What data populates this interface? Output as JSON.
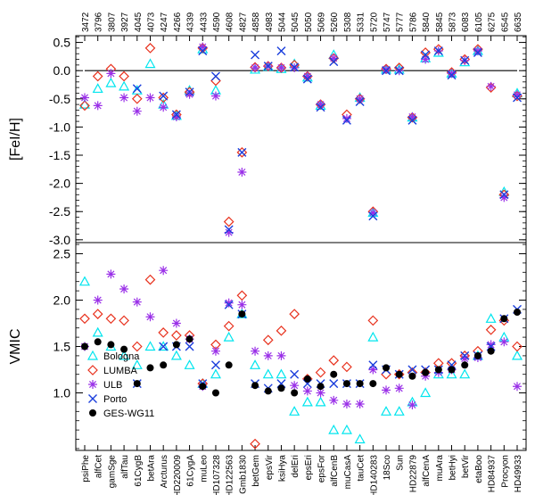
{
  "chart_data": {
    "type": "scatter",
    "categories": [
      "psiPhe",
      "alfCet",
      "gamSge",
      "alfTau",
      "61CygB",
      "betAra",
      "Arcturus",
      "HD220009",
      "61CygA",
      "muLeo",
      "HD107328",
      "HD122563",
      "Gmb1830",
      "betGem",
      "epsVir",
      "ksiHya",
      "delEri",
      "epsEri",
      "epsFor",
      "alfCenB",
      "muCasA",
      "tauCet",
      "HD140283",
      "18Sco",
      "Sun",
      "HD22879",
      "alfCenA",
      "muAra",
      "betHyi",
      "betVir",
      "etaBoo",
      "HD84937",
      "Procyon",
      "HD49933"
    ],
    "top_labels": [
      "3472",
      "3796",
      "3807",
      "3927",
      "4045",
      "4073",
      "4247",
      "4266",
      "4339",
      "4433",
      "4590",
      "4608",
      "4827",
      "4858",
      "4983",
      "5044",
      "5045",
      "5050",
      "5069",
      "5260",
      "5308",
      "5331",
      "5720",
      "5747",
      "5777",
      "5786",
      "5840",
      "5845",
      "5873",
      "6083",
      "6105",
      "6275",
      "6545",
      "6635"
    ],
    "top_panel": {
      "ylabel": "[FeI/H]",
      "ylim": [
        -3.05,
        0.62
      ],
      "yticks": [
        0.5,
        0.0,
        -0.5,
        -1.0,
        -1.5,
        -2.0,
        -2.5,
        -3.0
      ],
      "ytick_labels": [
        "0.5",
        "0.0",
        "-0.5",
        "-1.0",
        "-1.5",
        "-2.0",
        "-2.5",
        "-3.0"
      ],
      "reference_line": 0.0,
      "series": [
        {
          "name": "Bologna",
          "marker": "triangle",
          "color": "#00e5ee",
          "values": [
            -0.6,
            -0.32,
            -0.22,
            -0.28,
            -0.35,
            0.12,
            -0.6,
            -0.8,
            -0.35,
            0.38,
            -0.35,
            null,
            null,
            0.02,
            0.07,
            0.03,
            0.12,
            -0.12,
            -0.62,
            0.28,
            null,
            -0.48,
            -2.52,
            0.02,
            0.02,
            -0.83,
            0.22,
            0.32,
            -0.05,
            0.15,
            0.35,
            null,
            -2.15,
            -0.4
          ]
        },
        {
          "name": "LUMBA",
          "marker": "diamond",
          "color": "#e8321e",
          "values": [
            -0.62,
            -0.1,
            0.03,
            -0.1,
            -0.5,
            0.4,
            -0.48,
            -0.78,
            -0.38,
            0.4,
            -0.18,
            -2.68,
            -1.45,
            0.06,
            0.08,
            0.05,
            0.1,
            -0.1,
            -0.6,
            0.22,
            -0.78,
            -0.5,
            -2.5,
            0.03,
            0.05,
            -0.83,
            0.32,
            0.38,
            -0.03,
            0.2,
            0.38,
            -0.3,
            -2.2,
            -0.45
          ]
        },
        {
          "name": "ULB",
          "marker": "asterisk",
          "color": "#9a30e8",
          "values": [
            -0.48,
            -0.62,
            -0.05,
            -0.48,
            -0.72,
            -0.48,
            -0.65,
            -0.82,
            -0.42,
            0.42,
            -0.45,
            -2.87,
            -1.8,
            0.05,
            0.08,
            0.05,
            0.05,
            -0.1,
            -0.6,
            0.22,
            -0.85,
            -0.5,
            -2.52,
            0.02,
            0.0,
            -0.82,
            0.2,
            0.35,
            -0.05,
            0.18,
            0.35,
            -0.28,
            -2.25,
            -0.43
          ]
        },
        {
          "name": "Porto",
          "marker": "x",
          "color": "#1a3edc",
          "values": [
            null,
            null,
            null,
            null,
            -0.32,
            null,
            -0.45,
            -0.78,
            -0.38,
            0.35,
            -0.1,
            -2.82,
            -1.45,
            0.28,
            0.08,
            0.35,
            0.06,
            -0.15,
            -0.65,
            0.16,
            -0.88,
            -0.55,
            -2.58,
            0.0,
            0.0,
            -0.88,
            0.28,
            0.35,
            -0.08,
            0.18,
            0.32,
            null,
            -2.2,
            -0.48
          ]
        }
      ]
    },
    "bottom_panel": {
      "ylabel": "VMIC",
      "ylim": [
        0.38,
        2.62
      ],
      "yticks": [
        1.0,
        1.5,
        2.0,
        2.5
      ],
      "ytick_labels": [
        "1.0",
        "1.5",
        "2.0",
        "2.5"
      ],
      "series": [
        {
          "name": "Bologna",
          "marker": "triangle",
          "color": "#00e5ee",
          "values": [
            2.2,
            1.65,
            1.5,
            1.4,
            1.3,
            1.5,
            1.5,
            1.4,
            1.3,
            1.1,
            1.2,
            1.6,
            1.85,
            1.3,
            1.2,
            1.2,
            0.8,
            0.9,
            0.9,
            0.6,
            0.6,
            0.5,
            1.6,
            0.8,
            0.8,
            0.9,
            1.0,
            1.2,
            1.2,
            1.2,
            1.4,
            1.8,
            1.6,
            1.4
          ]
        },
        {
          "name": "LUMBA",
          "marker": "diamond",
          "color": "#e8321e",
          "values": [
            1.8,
            1.85,
            1.8,
            1.78,
            1.5,
            2.22,
            1.65,
            1.62,
            1.62,
            1.1,
            1.52,
            1.72,
            2.05,
            0.45,
            1.57,
            1.67,
            1.85,
            1.15,
            1.22,
            1.35,
            1.28,
            null,
            1.78,
            1.2,
            1.2,
            1.22,
            1.22,
            1.32,
            1.32,
            1.4,
            1.45,
            1.68,
            1.78,
            1.5
          ]
        },
        {
          "name": "ULB",
          "marker": "asterisk",
          "color": "#9a30e8",
          "values": [
            1.5,
            2.0,
            2.28,
            2.12,
            1.98,
            1.82,
            2.32,
            1.75,
            1.58,
            1.07,
            1.45,
            1.97,
            1.95,
            1.45,
            1.4,
            1.4,
            1.08,
            1.02,
            1.0,
            0.92,
            0.88,
            0.88,
            1.25,
            1.03,
            1.05,
            0.87,
            1.18,
            1.22,
            1.25,
            1.37,
            1.38,
            1.52,
            1.55,
            1.07
          ]
        },
        {
          "name": "Porto",
          "marker": "x",
          "color": "#1a3edc",
          "values": [
            null,
            null,
            null,
            null,
            1.1,
            null,
            1.5,
            1.5,
            1.5,
            1.1,
            1.3,
            1.95,
            1.85,
            1.1,
            1.05,
            1.1,
            1.2,
            1.1,
            1.1,
            1.1,
            1.1,
            1.1,
            1.3,
            1.25,
            1.2,
            1.25,
            1.25,
            1.25,
            1.3,
            1.4,
            1.4,
            1.5,
            1.8,
            1.9
          ]
        },
        {
          "name": "GES-WG11",
          "marker": "dot",
          "color": "#000000",
          "values": [
            1.5,
            1.55,
            1.52,
            1.47,
            1.1,
            1.27,
            1.3,
            1.52,
            1.58,
            1.07,
            1.0,
            1.3,
            1.85,
            1.08,
            1.02,
            1.05,
            1.0,
            1.15,
            1.07,
            1.2,
            1.1,
            1.1,
            1.1,
            1.27,
            1.2,
            1.18,
            1.22,
            1.25,
            1.25,
            1.3,
            1.4,
            1.45,
            1.8,
            1.87
          ]
        }
      ]
    },
    "legend": {
      "placement": "bottom-left of lower panel",
      "entries": [
        "Bologna",
        "LUMBA",
        "ULB",
        "Porto",
        "GES-WG11"
      ]
    }
  }
}
